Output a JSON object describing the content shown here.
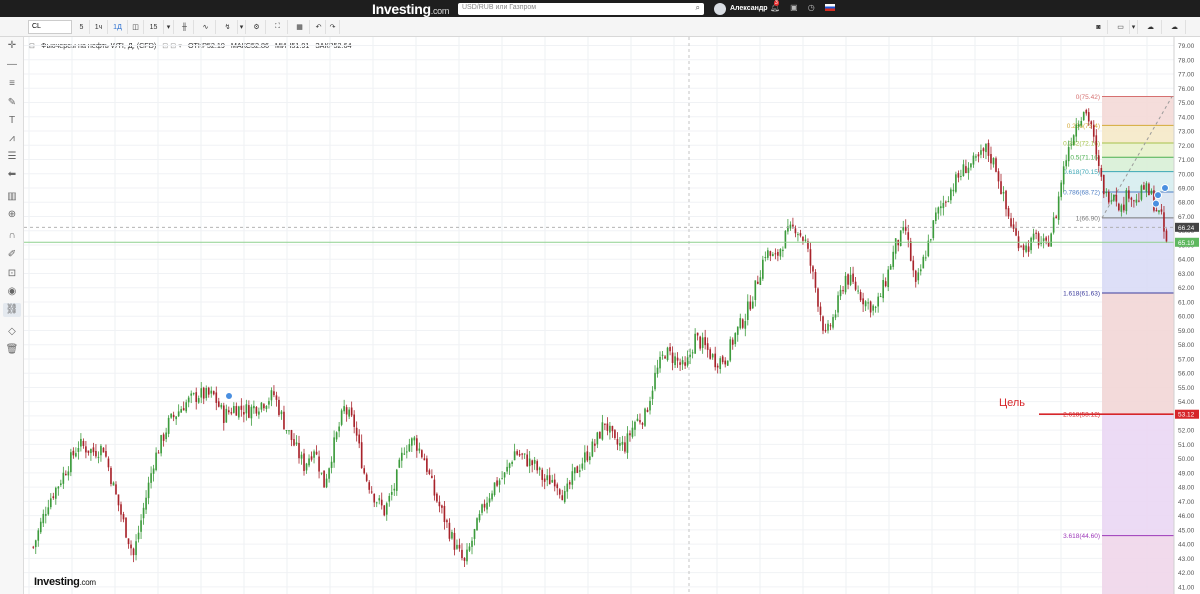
{
  "topbar": {
    "logo_main": "Investing",
    "logo_suffix": ".com",
    "search_placeholder": "USD/RUB или Газпром",
    "user_name": "Александр",
    "notification_count": "3"
  },
  "toolbar": {
    "symbol": "CL",
    "intervals": [
      "5",
      "1ч",
      "1Д",
      "15"
    ]
  },
  "legend": {
    "instrument": "Фьючерсы на нефть WTI, Д, (CFD)",
    "open_label": "ОТКР",
    "open_value": "52.19",
    "high_label": "МАКС",
    "high_value": "52.86",
    "low_label": "МИН",
    "low_value": "51.91",
    "close_label": "ЗАКР",
    "close_value": "52.64"
  },
  "annotation": {
    "target_label": "Цель"
  },
  "brand": {
    "main": "Investing",
    "suffix": ".com"
  },
  "chart_data": {
    "type": "candlestick",
    "instrument": "Фьючерсы на нефть WTI, Д, (CFD)",
    "ylim": [
      40.5,
      79.6
    ],
    "y_ticks": [
      "79.00",
      "78.00",
      "77.00",
      "76.00",
      "75.00",
      "74.00",
      "73.00",
      "72.00",
      "71.00",
      "70.00",
      "69.00",
      "68.00",
      "67.00",
      "66.00",
      "65.00",
      "64.00",
      "63.00",
      "62.00",
      "61.00",
      "60.00",
      "59.00",
      "58.00",
      "57.00",
      "56.00",
      "55.00",
      "54.00",
      "53.00",
      "52.00",
      "51.00",
      "50.00",
      "49.00",
      "48.00",
      "47.00",
      "46.00",
      "45.00",
      "44.00",
      "43.00",
      "42.00",
      "41.00"
    ],
    "colors": {
      "up": "#3c9b3c",
      "down": "#a8232b",
      "target": "#d6262a",
      "hline": "#8fd18f"
    },
    "price_path_anchors": [
      [
        0,
        43.8
      ],
      [
        6,
        47.0
      ],
      [
        10,
        48.2
      ],
      [
        18,
        51.0
      ],
      [
        24,
        50.5
      ],
      [
        28,
        50.8
      ],
      [
        32,
        48.0
      ],
      [
        36,
        45.5
      ],
      [
        40,
        43.2
      ],
      [
        44,
        46.5
      ],
      [
        48,
        49.8
      ],
      [
        54,
        52.5
      ],
      [
        60,
        53.8
      ],
      [
        66,
        54.5
      ],
      [
        72,
        54.4
      ],
      [
        76,
        53.0
      ],
      [
        80,
        53.6
      ],
      [
        86,
        53.4
      ],
      [
        92,
        54.0
      ],
      [
        96,
        54.5
      ],
      [
        100,
        52.5
      ],
      [
        104,
        51.0
      ],
      [
        108,
        49.5
      ],
      [
        112,
        50.8
      ],
      [
        116,
        48.2
      ],
      [
        120,
        51.0
      ],
      [
        124,
        53.5
      ],
      [
        128,
        52.4
      ],
      [
        132,
        49.0
      ],
      [
        136,
        47.4
      ],
      [
        140,
        46.3
      ],
      [
        144,
        48.0
      ],
      [
        148,
        50.8
      ],
      [
        152,
        51.3
      ],
      [
        156,
        50.0
      ],
      [
        160,
        47.5
      ],
      [
        164,
        45.8
      ],
      [
        168,
        44.0
      ],
      [
        172,
        42.6
      ],
      [
        176,
        44.8
      ],
      [
        180,
        46.8
      ],
      [
        184,
        48.2
      ],
      [
        188,
        48.8
      ],
      [
        192,
        50.5
      ],
      [
        196,
        50.0
      ],
      [
        200,
        49.5
      ],
      [
        204,
        48.4
      ],
      [
        208,
        48.6
      ],
      [
        212,
        47.3
      ],
      [
        216,
        49.0
      ],
      [
        220,
        50.1
      ],
      [
        224,
        51.0
      ],
      [
        228,
        52.6
      ],
      [
        232,
        51.0
      ],
      [
        236,
        50.9
      ],
      [
        240,
        52.6
      ],
      [
        244,
        53.0
      ],
      [
        248,
        55.8
      ],
      [
        252,
        57.5
      ],
      [
        256,
        57.0
      ],
      [
        260,
        56.2
      ],
      [
        264,
        58.5
      ],
      [
        268,
        57.8
      ],
      [
        272,
        56.9
      ],
      [
        276,
        57.0
      ],
      [
        280,
        58.7
      ],
      [
        284,
        60.0
      ],
      [
        288,
        62.0
      ],
      [
        292,
        64.5
      ],
      [
        296,
        64.0
      ],
      [
        300,
        65.6
      ],
      [
        304,
        66.3
      ],
      [
        308,
        65.2
      ],
      [
        312,
        62.0
      ],
      [
        316,
        58.5
      ],
      [
        320,
        60.3
      ],
      [
        324,
        62.8
      ],
      [
        328,
        62.0
      ],
      [
        332,
        61.0
      ],
      [
        336,
        60.5
      ],
      [
        340,
        62.5
      ],
      [
        344,
        65.0
      ],
      [
        348,
        66.0
      ],
      [
        352,
        62.0
      ],
      [
        356,
        64.5
      ],
      [
        360,
        67.0
      ],
      [
        364,
        68.3
      ],
      [
        368,
        69.5
      ],
      [
        372,
        70.5
      ],
      [
        376,
        70.8
      ],
      [
        380,
        71.7
      ],
      [
        384,
        70.5
      ],
      [
        388,
        67.5
      ],
      [
        392,
        65.5
      ],
      [
        396,
        64.8
      ],
      [
        400,
        65.5
      ],
      [
        404,
        64.8
      ],
      [
        408,
        67.2
      ],
      [
        410,
        69.5
      ],
      [
        413,
        72.0
      ],
      [
        416,
        73.5
      ],
      [
        419,
        74.6
      ],
      [
        422,
        73.5
      ],
      [
        424,
        71.0
      ],
      [
        426,
        69.5
      ],
      [
        428,
        68.4
      ],
      [
        431,
        68.8
      ],
      [
        434,
        67.5
      ],
      [
        437,
        68.8
      ],
      [
        440,
        68.0
      ],
      [
        443,
        69.0
      ],
      [
        446,
        68.4
      ],
      [
        448,
        67.5
      ],
      [
        450,
        66.8
      ],
      [
        452,
        65.0
      ]
    ],
    "fibonacci": {
      "levels": [
        {
          "label": "0(75.42)",
          "price": 75.42,
          "fill": "#f4d9d7",
          "line": "#d67070"
        },
        {
          "label": "0.236(73.4)",
          "price": 73.4,
          "fill": "#f5e9c8",
          "line": "#d4aa3a"
        },
        {
          "label": "0.382(72.16)",
          "price": 72.16,
          "fill": "#e8f2cb",
          "line": "#a5c14a"
        },
        {
          "label": "0.5(71.16)",
          "price": 71.16,
          "fill": "#d8efd6",
          "line": "#4caf50"
        },
        {
          "label": "0.618(70.15)",
          "price": 70.15,
          "fill": "#d6edf0",
          "line": "#3aa6b5"
        },
        {
          "label": "0.786(68.72)",
          "price": 68.72,
          "fill": "#d9e4f2",
          "line": "#4f7fc4"
        },
        {
          "label": "1(66.90)",
          "price": 66.9,
          "fill": "#d9dbf6",
          "line": "#777"
        },
        {
          "label": "1.618(61.63)",
          "price": 61.63,
          "fill": "#f2d6d6",
          "line": "#3c3c9c"
        },
        {
          "label": "2.618(53.12)",
          "price": 53.12,
          "fill": "#ead7f4",
          "line": "#d6262a"
        },
        {
          "label": "3.618(44.60)",
          "price": 44.6,
          "fill": "#f0d6ea",
          "line": "#9d37b9"
        }
      ]
    },
    "price_tags": [
      {
        "value": "66.24",
        "price": 66.24,
        "color": "#444444"
      },
      {
        "value": "65.19",
        "price": 65.19,
        "color": "#5fb85f"
      },
      {
        "value": "53.12",
        "price": 53.12,
        "color": "#d6262a"
      }
    ]
  }
}
